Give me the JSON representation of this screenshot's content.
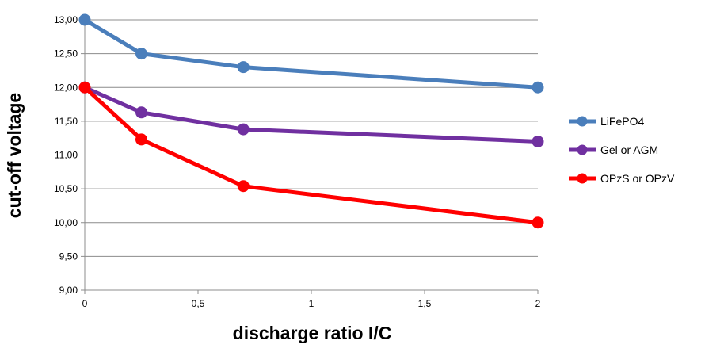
{
  "chart_data": {
    "type": "line",
    "title": "",
    "xlabel": "discharge ratio I/C",
    "ylabel": "cut-off voltage",
    "xlim": [
      0,
      2
    ],
    "ylim": [
      9,
      13
    ],
    "grid": true,
    "legend_position": "right",
    "x_ticks": [
      "0",
      "0,5",
      "1",
      "1,5",
      "2"
    ],
    "x_tick_values": [
      0,
      0.5,
      1,
      1.5,
      2
    ],
    "y_ticks": [
      "9,00",
      "9,50",
      "10,00",
      "10,50",
      "11,00",
      "11,50",
      "12,00",
      "12,50",
      "13,00"
    ],
    "y_tick_values": [
      9,
      9.5,
      10,
      10.5,
      11,
      11.5,
      12,
      12.5,
      13
    ],
    "x": [
      0,
      0.25,
      0.7,
      2
    ],
    "series": [
      {
        "name": "LiFePO4",
        "color": "#4a7ebb",
        "values": [
          13.0,
          12.5,
          12.3,
          12.0
        ]
      },
      {
        "name": "Gel or AGM",
        "color": "#7030a0",
        "values": [
          12.0,
          11.63,
          11.38,
          11.2
        ]
      },
      {
        "name": "OPzS or OPzV",
        "color": "#ff0000",
        "values": [
          12.0,
          11.23,
          10.54,
          10.0
        ]
      }
    ]
  }
}
